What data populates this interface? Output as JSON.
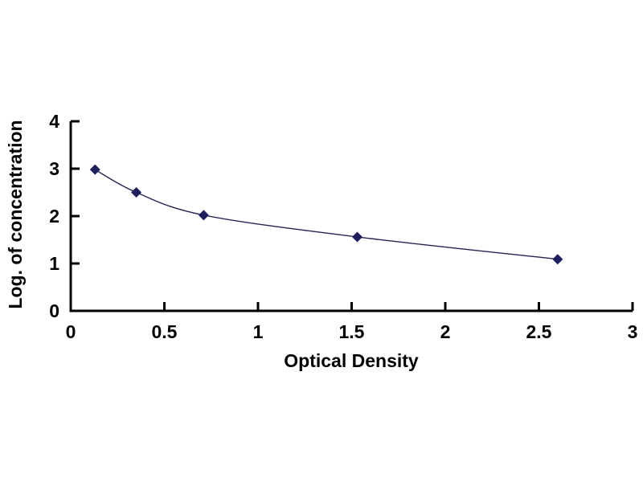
{
  "chart_data": {
    "type": "scatter",
    "title": "",
    "xlabel": "Optical Density",
    "ylabel": "Log. of concentration",
    "x": [
      0.13,
      0.35,
      0.71,
      1.53,
      2.6
    ],
    "y": [
      2.98,
      2.5,
      2.02,
      1.56,
      1.09
    ],
    "xlim": [
      0,
      3
    ],
    "ylim": [
      0,
      4
    ],
    "x_tick_values": [
      0,
      0.5,
      1,
      1.5,
      2,
      2.5,
      3
    ],
    "x_tick_labels": [
      "0",
      "0.5",
      "1",
      "1.5",
      "2",
      "2.5",
      "3"
    ],
    "y_tick_values": [
      0,
      1,
      2,
      3,
      4
    ],
    "y_tick_labels": [
      "0",
      "1",
      "2",
      "3",
      "4"
    ],
    "grid": false,
    "legend": "none",
    "line_style": "smooth",
    "marker": "diamond",
    "colors": {
      "marker": "#1F1F5F",
      "line": "#23234F",
      "axis": "#000000",
      "text": "#000000",
      "background": "#FFFFFF"
    }
  }
}
